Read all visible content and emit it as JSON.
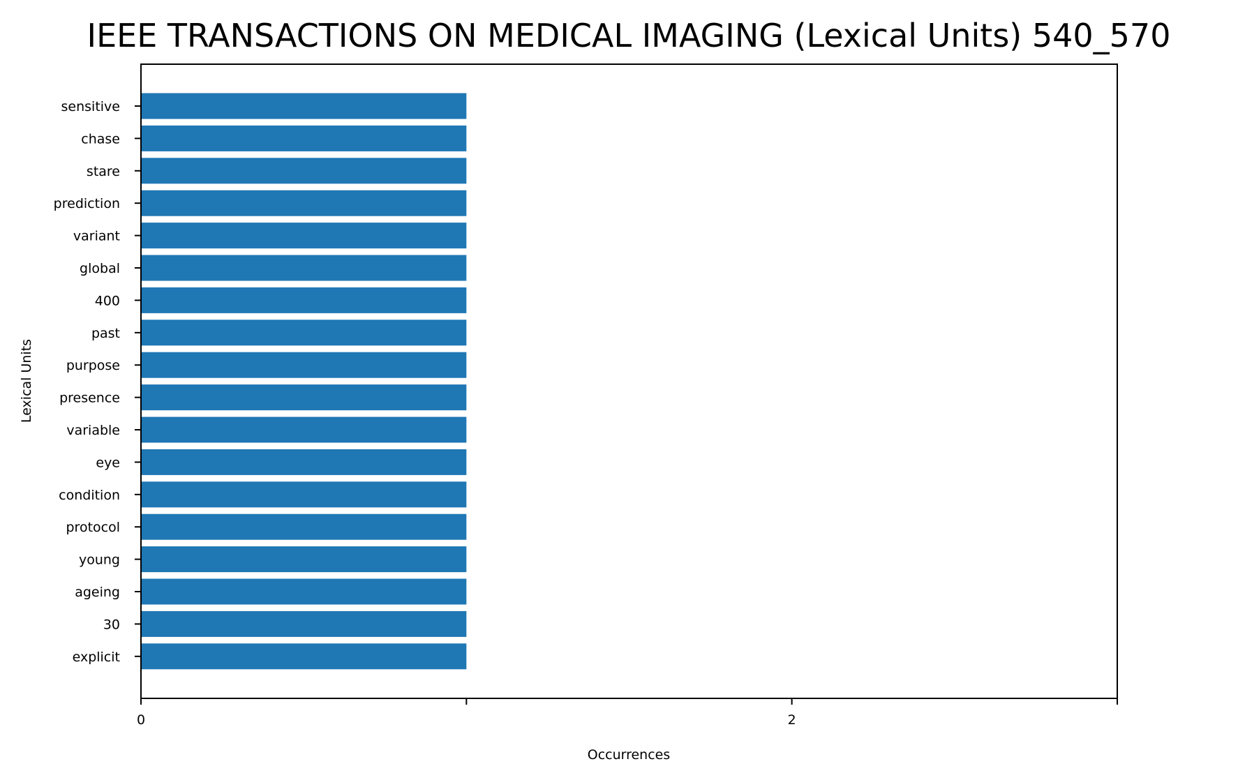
{
  "chart_data": {
    "type": "bar",
    "orientation": "horizontal",
    "title": "IEEE TRANSACTIONS ON MEDICAL IMAGING (Lexical Units) 540_570",
    "xlabel": "Occurrences",
    "ylabel": "Lexical Units",
    "categories": [
      "sensitive",
      "chase",
      "stare",
      "prediction",
      "variant",
      "global",
      "400",
      "past",
      "purpose",
      "presence",
      "variable",
      "eye",
      "condition",
      "protocol",
      "young",
      "ageing",
      "30",
      "explicit"
    ],
    "values": [
      1,
      1,
      1,
      1,
      1,
      1,
      1,
      1,
      1,
      1,
      1,
      1,
      1,
      1,
      1,
      1,
      1,
      1
    ],
    "xlim": [
      0,
      3
    ],
    "xticks": [
      0,
      1,
      2,
      3
    ],
    "xtick_labels": [
      "0",
      "",
      "2",
      ""
    ],
    "grid": false,
    "legend": "none",
    "bar_color": "#1f77b4"
  }
}
